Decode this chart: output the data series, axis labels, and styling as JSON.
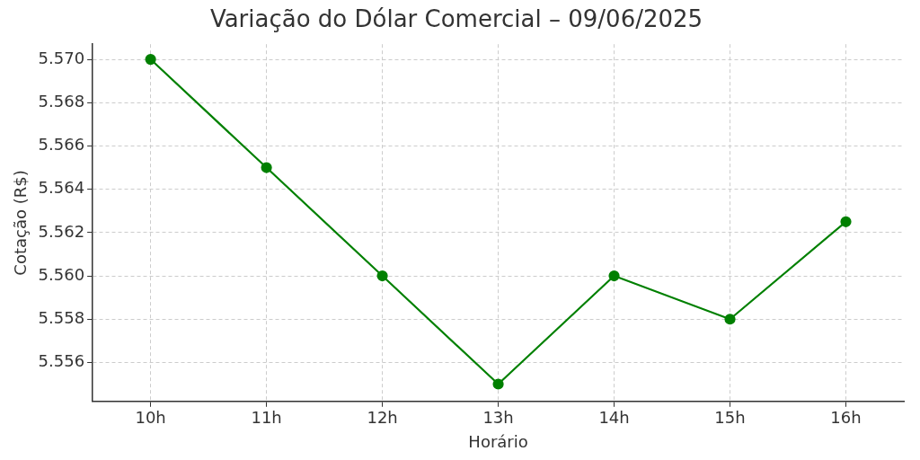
{
  "chart_data": {
    "type": "line",
    "title": "Variação do Dólar Comercial – 09/06/2025",
    "xlabel": "Horário",
    "ylabel": "Cotação (R$)",
    "categories": [
      "10h",
      "11h",
      "12h",
      "13h",
      "14h",
      "15h",
      "16h"
    ],
    "series": [
      {
        "color": "#008000",
        "values": [
          5.57,
          5.565,
          5.56,
          5.555,
          5.56,
          5.558,
          5.5625
        ]
      }
    ],
    "ylim": [
      5.5542,
      5.5707
    ],
    "yticks": [
      {
        "value": 5.556,
        "label": "5.556"
      },
      {
        "value": 5.558,
        "label": "5.558"
      },
      {
        "value": 5.56,
        "label": "5.560"
      },
      {
        "value": 5.562,
        "label": "5.562"
      },
      {
        "value": 5.564,
        "label": "5.564"
      },
      {
        "value": 5.566,
        "label": "5.566"
      },
      {
        "value": 5.568,
        "label": "5.568"
      },
      {
        "value": 5.57,
        "label": "5.570"
      }
    ],
    "grid": true,
    "marker": "circle",
    "line_style": "solid"
  }
}
